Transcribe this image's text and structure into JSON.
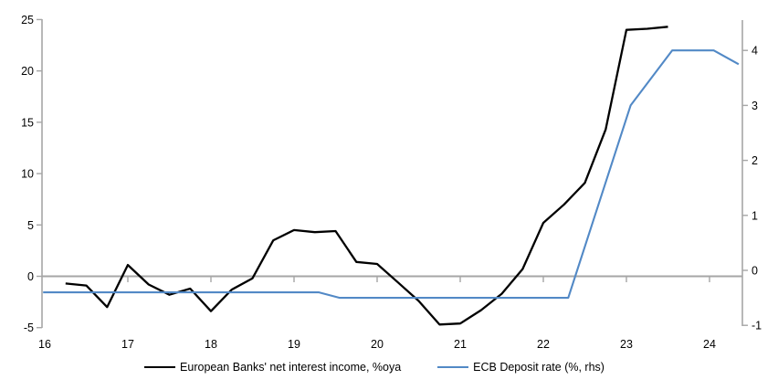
{
  "chart_data": {
    "type": "line",
    "title": "",
    "xlabel": "",
    "ylabel_left": "",
    "ylabel_right": "",
    "xlim": [
      16,
      24.4
    ],
    "ylim_left": [
      -5,
      25
    ],
    "ylim_right": [
      -1,
      4
    ],
    "grid": "zero-line-only",
    "legend_position": "bottom-center",
    "x_axis": {
      "tick_labels": [
        "16",
        "17",
        "18",
        "19",
        "20",
        "21",
        "22",
        "23",
        "24"
      ]
    },
    "left_axis": {
      "tick_labels": [
        "25",
        "20",
        "15",
        "10",
        "5",
        "0",
        "-5"
      ]
    },
    "right_axis": {
      "tick_labels": [
        "4",
        "3",
        "2",
        "1",
        "0",
        "-1"
      ]
    },
    "series": [
      {
        "name": "European Banks' net interest income, %oya",
        "axis": "left",
        "color": "#000000",
        "x": [
          16.25,
          16.5,
          16.75,
          17.0,
          17.25,
          17.5,
          17.75,
          18.0,
          18.25,
          18.5,
          18.75,
          19.0,
          19.25,
          19.5,
          19.75,
          20.0,
          20.25,
          20.5,
          20.75,
          21.0,
          21.25,
          21.5,
          21.75,
          22.0,
          22.25,
          22.5,
          22.75,
          23.0,
          23.25,
          23.5
        ],
        "values": [
          -0.7,
          -0.9,
          -3.0,
          1.1,
          -0.8,
          -1.8,
          -1.2,
          -3.4,
          -1.3,
          -0.2,
          3.5,
          4.5,
          4.3,
          4.4,
          1.4,
          1.2,
          -0.6,
          -2.4,
          -4.7,
          -4.6,
          -3.3,
          -1.7,
          0.7,
          5.2,
          7.0,
          9.1,
          14.3,
          24.0,
          24.1,
          24.3
        ]
      },
      {
        "name": "ECB Deposit rate (%, rhs)",
        "axis": "right",
        "color": "#5289c6",
        "x": [
          15.98,
          19.3,
          19.55,
          22.3,
          23.05,
          23.55,
          24.05,
          24.35
        ],
        "values": [
          -0.4,
          -0.4,
          -0.5,
          -0.5,
          3.0,
          4.0,
          4.0,
          3.75
        ]
      }
    ]
  },
  "colors": {
    "axis_gray": "#a6a6a6",
    "zero_line_gray": "#a6a6a6",
    "text": "#000000",
    "background": "#ffffff"
  }
}
